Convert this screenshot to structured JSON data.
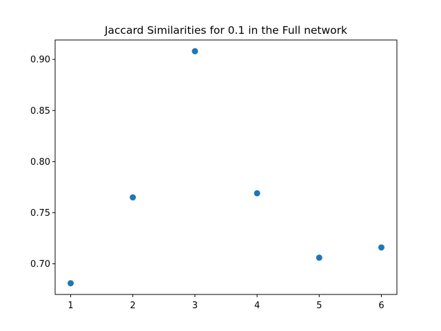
{
  "chart_data": {
    "type": "scatter",
    "title": "Jaccard Similarities for 0.1 in the Full network",
    "xlabel": "",
    "ylabel": "",
    "x": [
      1,
      2,
      3,
      4,
      5,
      6
    ],
    "y": [
      0.681,
      0.765,
      0.908,
      0.769,
      0.706,
      0.716
    ],
    "xlim": [
      0.75,
      6.25
    ],
    "ylim": [
      0.67,
      0.919
    ],
    "xticks": [
      1,
      2,
      3,
      4,
      5,
      6
    ],
    "xtick_labels": [
      "1",
      "2",
      "3",
      "4",
      "5",
      "6"
    ],
    "yticks": [
      0.7,
      0.75,
      0.8,
      0.85,
      0.9
    ],
    "ytick_labels": [
      "0.70",
      "0.75",
      "0.80",
      "0.85",
      "0.90"
    ],
    "grid": false,
    "marker_color": "#1f77b4"
  }
}
